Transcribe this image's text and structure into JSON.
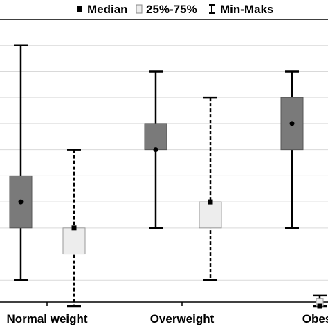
{
  "chart_data": {
    "type": "box",
    "title": "",
    "xlabel": "",
    "ylabel": "",
    "ylim": [
      0,
      11
    ],
    "grid": true,
    "legend_position": "top",
    "legend": [
      {
        "label": "Median",
        "symbol": "square-marker"
      },
      {
        "label": "25%-75%",
        "symbol": "box"
      },
      {
        "label": "Min-Maks",
        "symbol": "whisker"
      }
    ],
    "categories": [
      "Normal weight",
      "Overweight",
      "Obes"
    ],
    "series": [
      {
        "style": "dark-solid",
        "fill": "#7a7a7a",
        "marker": "circle",
        "boxes": [
          {
            "min": 1,
            "q1": 3,
            "median": 4,
            "q3": 5,
            "max": 10
          },
          {
            "min": 3,
            "q1": 6,
            "median": 6,
            "q3": 7,
            "max": 9
          },
          {
            "min": 3,
            "q1": 6,
            "median": 7,
            "q3": 8,
            "max": 9
          }
        ]
      },
      {
        "style": "light-dashed",
        "fill": "#ededed",
        "marker": "square",
        "boxes": [
          {
            "min": 0,
            "q1": 2,
            "median": 3,
            "q3": 3,
            "max": 6
          },
          {
            "min": 1,
            "q1": 3,
            "median": 4,
            "q3": 4,
            "max": 8
          },
          {
            "min": 0,
            "q1": 0,
            "median": 0,
            "q3": 0.3,
            "max": 0.4
          }
        ]
      }
    ]
  }
}
